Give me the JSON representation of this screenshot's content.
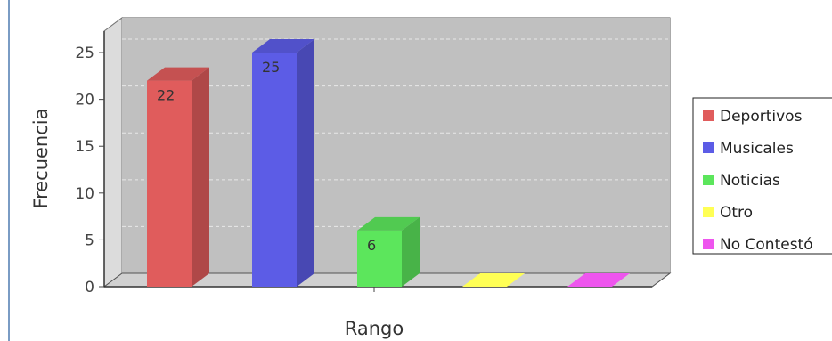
{
  "chart_data": {
    "type": "bar",
    "categories": [
      "Deportivos",
      "Musicales",
      "Noticias",
      "Otro",
      "No Contestó"
    ],
    "values": [
      22,
      25,
      6,
      0,
      0
    ],
    "colors": [
      "#e05c5c",
      "#5c5ce6",
      "#5ce65c",
      "#ffff55",
      "#ee55ee"
    ],
    "xlabel": "Rango",
    "ylabel": "Frecuencia",
    "ylim": [
      0,
      27
    ],
    "yticks": [
      0,
      5,
      10,
      15,
      20,
      25
    ],
    "bar_labels": [
      "22",
      "25",
      "6",
      "",
      ""
    ],
    "legend": {
      "placement": "right",
      "entries": [
        "Deportivos",
        "Musicales",
        "Noticias",
        "Otro",
        "No Contestó"
      ]
    },
    "grid": true
  }
}
